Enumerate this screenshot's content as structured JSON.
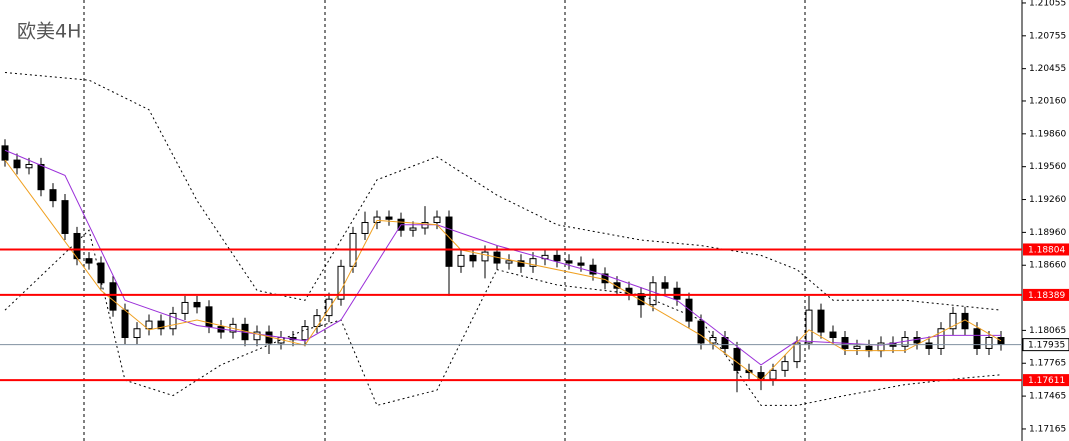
{
  "chart_data": {
    "type": "candlestick",
    "title": "欧美4H",
    "open": [
      1.1975,
      1.1962,
      1.1955,
      1.1958,
      1.1935,
      1.1925,
      1.1895,
      1.1872,
      1.1868,
      1.185,
      1.1825,
      1.18,
      1.1808,
      1.1815,
      1.1808,
      1.1822,
      1.1832,
      1.1828,
      1.181,
      1.1805,
      1.1812,
      1.1798,
      1.1805,
      1.1795,
      1.18,
      1.1798,
      1.181,
      1.182,
      1.1835,
      1.1865,
      1.1895,
      1.1905,
      1.191,
      1.1908,
      1.1898,
      1.19,
      1.1905,
      1.191,
      1.1865,
      1.1875,
      1.187,
      1.1878,
      1.1868,
      1.187,
      1.1865,
      1.1872,
      1.1875,
      1.187,
      1.1868,
      1.1866,
      1.1858,
      1.185,
      1.1845,
      1.184,
      1.183,
      1.185,
      1.1845,
      1.1835,
      1.1815,
      1.1795,
      1.18,
      1.179,
      1.177,
      1.1768,
      1.1762,
      1.177,
      1.1778,
      1.1795,
      1.1825,
      1.1805,
      1.18,
      1.179,
      1.1792,
      1.1788,
      1.1795,
      1.1792,
      1.18,
      1.1795,
      1.179,
      1.1808,
      1.1822,
      1.1808,
      1.179,
      1.18
    ],
    "high": [
      1.1981,
      1.1968,
      1.1964,
      1.1964,
      1.1941,
      1.1931,
      1.1901,
      1.1878,
      1.1874,
      1.1856,
      1.1831,
      1.1814,
      1.1821,
      1.1821,
      1.1828,
      1.1838,
      1.1838,
      1.1834,
      1.1816,
      1.1818,
      1.1818,
      1.1811,
      1.1811,
      1.1806,
      1.1806,
      1.1816,
      1.1826,
      1.1841,
      1.1871,
      1.1901,
      1.1915,
      1.1916,
      1.1916,
      1.1914,
      1.1906,
      1.192,
      1.1916,
      1.1916,
      1.1881,
      1.1881,
      1.1884,
      1.1884,
      1.1876,
      1.1876,
      1.1878,
      1.1881,
      1.1881,
      1.1876,
      1.1874,
      1.1872,
      1.1864,
      1.1856,
      1.1851,
      1.1846,
      1.1856,
      1.1856,
      1.1851,
      1.1841,
      1.1821,
      1.1806,
      1.1806,
      1.1796,
      1.1776,
      1.1774,
      1.1776,
      1.1784,
      1.1801,
      1.1838,
      1.1831,
      1.1811,
      1.1806,
      1.1798,
      1.1798,
      1.1801,
      1.1801,
      1.1806,
      1.1806,
      1.1801,
      1.1814,
      1.1828,
      1.1828,
      1.1814,
      1.1806,
      1.1806
    ],
    "low": [
      1.1956,
      1.1949,
      1.1949,
      1.1929,
      1.1919,
      1.1889,
      1.1866,
      1.1862,
      1.1844,
      1.1819,
      1.1794,
      1.1794,
      1.1802,
      1.1802,
      1.1802,
      1.1816,
      1.1822,
      1.1804,
      1.1799,
      1.1799,
      1.1792,
      1.1792,
      1.1785,
      1.1789,
      1.1792,
      1.1792,
      1.1804,
      1.1814,
      1.1829,
      1.1859,
      1.1889,
      1.1899,
      1.1902,
      1.1892,
      1.1892,
      1.1894,
      1.1899,
      1.1838,
      1.1859,
      1.1864,
      1.1854,
      1.1862,
      1.1862,
      1.1859,
      1.1859,
      1.1866,
      1.1864,
      1.1862,
      1.186,
      1.1852,
      1.1844,
      1.1839,
      1.1834,
      1.1818,
      1.1824,
      1.1839,
      1.1829,
      1.1809,
      1.1789,
      1.1789,
      1.1784,
      1.175,
      1.1762,
      1.1752,
      1.1756,
      1.1764,
      1.1772,
      1.1789,
      1.1799,
      1.1794,
      1.1784,
      1.1784,
      1.1782,
      1.1782,
      1.1786,
      1.1786,
      1.1789,
      1.1784,
      1.1784,
      1.1802,
      1.1802,
      1.1784,
      1.1784,
      1.1788
    ],
    "close": [
      1.1962,
      1.1955,
      1.1958,
      1.1935,
      1.1925,
      1.1895,
      1.1872,
      1.1868,
      1.185,
      1.1825,
      1.18,
      1.1808,
      1.1815,
      1.1808,
      1.1822,
      1.1832,
      1.1828,
      1.181,
      1.1805,
      1.1812,
      1.1798,
      1.1805,
      1.1795,
      1.18,
      1.1798,
      1.181,
      1.182,
      1.1835,
      1.1865,
      1.1895,
      1.1905,
      1.191,
      1.1908,
      1.1898,
      1.19,
      1.1905,
      1.191,
      1.1865,
      1.1875,
      1.187,
      1.1878,
      1.1868,
      1.187,
      1.1865,
      1.1872,
      1.1875,
      1.187,
      1.1868,
      1.1866,
      1.1858,
      1.185,
      1.1845,
      1.184,
      1.183,
      1.185,
      1.1845,
      1.1835,
      1.1815,
      1.1795,
      1.18,
      1.179,
      1.177,
      1.1768,
      1.1762,
      1.177,
      1.1778,
      1.1795,
      1.1825,
      1.1805,
      1.18,
      1.179,
      1.1792,
      1.1788,
      1.1795,
      1.1792,
      1.18,
      1.1795,
      1.179,
      1.1808,
      1.1822,
      1.1808,
      1.179,
      1.18,
      1.1794
    ],
    "up_color": "#ffffff",
    "down_color": "#000000",
    "lines": [
      {
        "color": "#000000",
        "dashed": true,
        "x": [
          0,
          7,
          12,
          16,
          21,
          25,
          28,
          31,
          36,
          41,
          46,
          53,
          58,
          63,
          66,
          69,
          75,
          83
        ],
        "values": [
          1.2042,
          1.2035,
          1.2008,
          1.1925,
          1.1843,
          1.1834,
          1.1889,
          1.1944,
          1.1965,
          1.193,
          1.1903,
          1.1889,
          1.1884,
          1.1875,
          1.1862,
          1.1834,
          1.1834,
          1.1825
        ]
      },
      {
        "color": "#000000",
        "dashed": true,
        "x": [
          0,
          7,
          10,
          14,
          18,
          25,
          28,
          31,
          36,
          41,
          46,
          53,
          58,
          63,
          66,
          70,
          75,
          80,
          83
        ],
        "values": [
          1.1825,
          1.1898,
          1.1761,
          1.1747,
          1.1775,
          1.1807,
          1.1816,
          1.1738,
          1.1752,
          1.1862,
          1.1848,
          1.1839,
          1.1816,
          1.1738,
          1.1738,
          1.1747,
          1.1757,
          1.1763,
          1.1766
        ]
      },
      {
        "color": "#9b30d9",
        "dashed": false,
        "x": [
          0,
          5,
          10,
          16,
          25,
          28,
          33,
          36,
          41,
          50,
          56,
          63,
          66,
          73,
          78,
          83
        ],
        "values": [
          1.1971,
          1.1948,
          1.1834,
          1.1811,
          1.1797,
          1.1816,
          1.1903,
          1.1903,
          1.1884,
          1.1857,
          1.1834,
          1.1775,
          1.1797,
          1.1793,
          1.1802,
          1.1802
        ]
      },
      {
        "color": "#f0a020",
        "dashed": false,
        "x": [
          0,
          8,
          12,
          16,
          25,
          28,
          31,
          36,
          38,
          50,
          58,
          63,
          67,
          70,
          75,
          80,
          83
        ],
        "values": [
          1.1962,
          1.1843,
          1.1807,
          1.1816,
          1.1793,
          1.1843,
          1.1907,
          1.1903,
          1.188,
          1.1853,
          1.1802,
          1.1761,
          1.1807,
          1.1788,
          1.1788,
          1.1816,
          1.1797
        ]
      }
    ],
    "levels": [
      1.18804,
      1.18389,
      1.17611
    ],
    "level_color": "#ff0000",
    "current_price": 1.17935,
    "ylim": [
      1.17055,
      1.21082
    ],
    "yticks": [
      1.21055,
      1.20755,
      1.20455,
      {
        "value": 1.2016,
        "label": "1.20160"
      },
      {
        "value": 1.1986,
        "label": "1.19860"
      },
      {
        "value": 1.1956,
        "label": "1.19560"
      },
      {
        "value": 1.1926,
        "label": "1.19260"
      },
      {
        "value": 1.1896,
        "label": "1.18960"
      },
      {
        "value": 1.1866,
        "label": "1.18660"
      },
      1.18065,
      1.17765,
      1.17465,
      1.17165
    ]
  }
}
